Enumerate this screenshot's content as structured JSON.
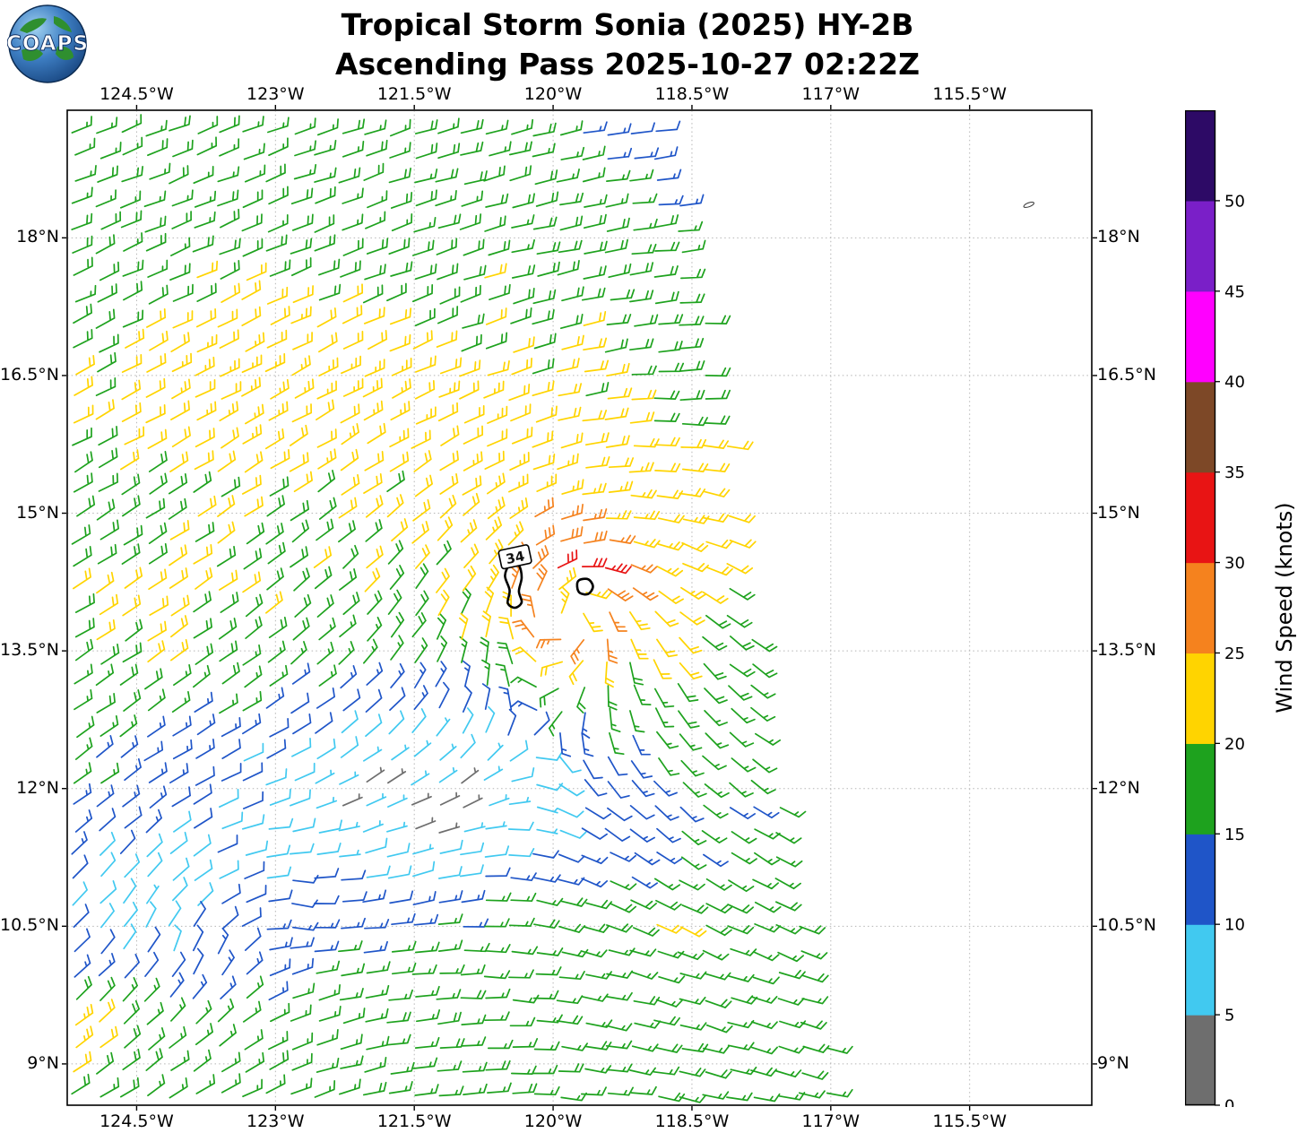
{
  "header": {
    "logo_text": "COAPS",
    "title_line1": "Tropical Storm Sonia (2025) HY-2B",
    "title_line2": "Ascending Pass 2025-10-27 02:22Z"
  },
  "chart_data": {
    "type": "scatter",
    "subtype": "satellite_wind_barb_field",
    "title": "Tropical Storm Sonia (2025) HY-2B",
    "subtitle": "Ascending Pass 2025-10-27 02:22Z",
    "xlabel": "",
    "ylabel": "",
    "grid": true,
    "lon_range": [
      -125.25,
      -114.18
    ],
    "lat_range": [
      8.55,
      19.39
    ],
    "x_ticks": [
      {
        "value": -124.5,
        "label": "124.5°W"
      },
      {
        "value": -123.0,
        "label": "123°W"
      },
      {
        "value": -121.5,
        "label": "121.5°W"
      },
      {
        "value": -120.0,
        "label": "120°W"
      },
      {
        "value": -118.5,
        "label": "118.5°W"
      },
      {
        "value": -117.0,
        "label": "117°W"
      },
      {
        "value": -115.5,
        "label": "115.5°W"
      }
    ],
    "y_ticks": [
      {
        "value": 9.0,
        "label": "9°N"
      },
      {
        "value": 10.5,
        "label": "10.5°N"
      },
      {
        "value": 12.0,
        "label": "12°N"
      },
      {
        "value": 13.5,
        "label": "13.5°N"
      },
      {
        "value": 15.0,
        "label": "15°N"
      },
      {
        "value": 16.5,
        "label": "16.5°N"
      },
      {
        "value": 18.0,
        "label": "18°N"
      }
    ],
    "colorbar": {
      "label": "Wind Speed (knots)",
      "range": [
        0,
        55
      ],
      "segment_knots": 5,
      "tick_values": [
        0,
        5,
        10,
        15,
        20,
        25,
        30,
        35,
        40,
        45,
        50
      ],
      "segment_colors": [
        "#6e6e6e",
        "#41c9f0",
        "#1f55c8",
        "#1ea21e",
        "#ffd400",
        "#f5821e",
        "#e81414",
        "#7d4827",
        "#ff00ff",
        "#7a1fc8",
        "#2d0a66"
      ]
    },
    "contour_34kt": {
      "label": "34",
      "label_lonlat": [
        -120.41,
        14.52
      ],
      "loops_lonlat": [
        [
          [
            -120.46,
            14.45
          ],
          [
            -120.37,
            14.43
          ],
          [
            -120.34,
            14.3
          ],
          [
            -120.37,
            14.15
          ],
          [
            -120.34,
            14.03
          ],
          [
            -120.41,
            13.97
          ],
          [
            -120.49,
            14.02
          ],
          [
            -120.47,
            14.16
          ],
          [
            -120.52,
            14.32
          ]
        ],
        [
          [
            -119.72,
            14.27
          ],
          [
            -119.62,
            14.28
          ],
          [
            -119.57,
            14.2
          ],
          [
            -119.62,
            14.12
          ],
          [
            -119.71,
            14.13
          ],
          [
            -119.74,
            14.2
          ]
        ]
      ],
      "stray_mark_lonlat": [
        -114.86,
        18.36
      ]
    },
    "swath_right_edge": {
      "lon_at_lat9": -117.0,
      "slope_deg_per_deg": -0.173
    },
    "barb_grid_spacing_deg": 0.262,
    "barb_units": {
      "half_barb_kt": 5,
      "full_barb_kt": 10,
      "flag_kt": 50
    },
    "wind_model": {
      "storm_center": [
        -119.8,
        14.05
      ],
      "max_wind_kt": 34,
      "radius_max_wind_deg": 0.5,
      "base_speed_kt": 16,
      "background_flow_uv_kt": [
        -12.5,
        -2.0
      ],
      "speed_features": [
        {
          "kind": "pool",
          "amp_kt": -13,
          "center": [
            -121.5,
            11.9
          ],
          "sigma": [
            2.3,
            1.15
          ]
        },
        {
          "kind": "pool",
          "amp_kt": -8,
          "center": [
            -124.6,
            10.6
          ],
          "sigma": [
            1.5,
            1.0
          ]
        },
        {
          "kind": "pool",
          "amp_kt": -9,
          "center": [
            -118.6,
            19.6
          ],
          "sigma": [
            1.1,
            1.0
          ]
        },
        {
          "kind": "band",
          "amp_kt": 5.5,
          "center": [
            -123.2,
            16.35
          ],
          "sigma": [
            2.2,
            1.25
          ]
        },
        {
          "kind": "band",
          "amp_kt": 4.0,
          "center": [
            -124.6,
            13.9
          ],
          "sigma": [
            1.6,
            0.8
          ]
        },
        {
          "kind": "band",
          "amp_kt": 5.0,
          "center": [
            -119.4,
            10.65
          ],
          "sigma": [
            1.3,
            0.35
          ]
        },
        {
          "kind": "patch",
          "amp_kt": 10,
          "center": [
            -125.4,
            9.35
          ],
          "sigma": [
            0.8,
            0.5
          ]
        },
        {
          "kind": "secondary_vortex",
          "amp_kt": 6,
          "center": [
            -123.6,
            10.9
          ],
          "radius": 0.8
        }
      ]
    }
  }
}
